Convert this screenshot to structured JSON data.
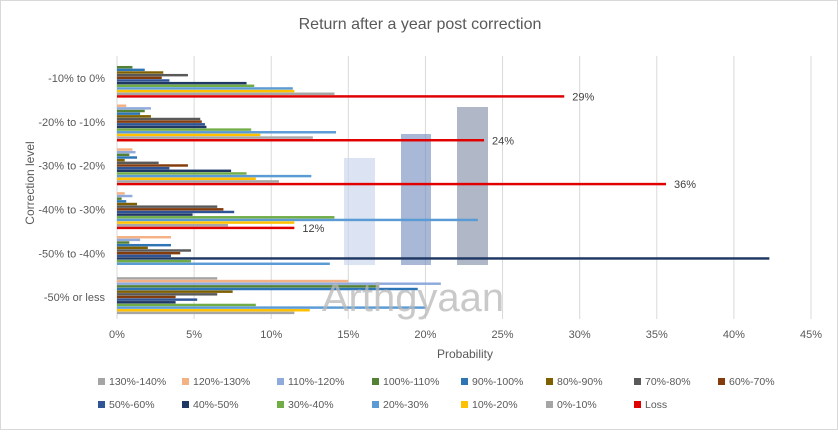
{
  "chart_data": {
    "type": "bar",
    "orientation": "horizontal",
    "title": "Return after a year post correction",
    "xlabel": "Probability",
    "ylabel": "Correction level",
    "xlim": [
      0,
      45
    ],
    "x_ticks": [
      "0%",
      "5%",
      "10%",
      "15%",
      "20%",
      "25%",
      "30%",
      "35%",
      "40%",
      "45%"
    ],
    "grid": true,
    "legend_position": "bottom",
    "categories": [
      "-10% to 0%",
      "-20% to -10%",
      "-30% to -20%",
      "-40% to -30%",
      "-50% to -40%",
      "-50% or less"
    ],
    "series": [
      {
        "name": "130%-140%",
        "color": "#a5a5a5",
        "values": [
          0,
          0,
          0,
          0,
          0,
          6.5
        ]
      },
      {
        "name": "120%-130%",
        "color": "#f4b183",
        "values": [
          0,
          0.6,
          1.0,
          0.5,
          3.5,
          15
        ]
      },
      {
        "name": "110%-120%",
        "color": "#8faadc",
        "values": [
          0,
          2.2,
          1.2,
          1.0,
          1.5,
          21
        ]
      },
      {
        "name": "100%-110%",
        "color": "#548235",
        "values": [
          1.0,
          1.8,
          0.8,
          0.3,
          0.8,
          17
        ]
      },
      {
        "name": "90%-100%",
        "color": "#2e75b6",
        "values": [
          1.8,
          1.5,
          1.3,
          0.6,
          3.5,
          19.5
        ]
      },
      {
        "name": "80%-90%",
        "color": "#7f6000",
        "values": [
          3.0,
          2.2,
          0.5,
          1.3,
          2.0,
          7.5
        ]
      },
      {
        "name": "70%-80%",
        "color": "#595959",
        "values": [
          4.6,
          5.4,
          2.7,
          6.5,
          4.8,
          6.5
        ]
      },
      {
        "name": "60%-70%",
        "color": "#843c0c",
        "values": [
          2.9,
          5.5,
          4.6,
          6.9,
          4.1,
          3.8
        ]
      },
      {
        "name": "50%-60%",
        "color": "#2f5597",
        "values": [
          3.4,
          5.7,
          3.4,
          7.6,
          3.5,
          5.2
        ]
      },
      {
        "name": "40%-50%",
        "color": "#203864",
        "values": [
          8.4,
          5.8,
          7.4,
          4.9,
          42.3,
          3.8
        ]
      },
      {
        "name": "30%-40%",
        "color": "#70ad47",
        "values": [
          8.9,
          8.7,
          8.4,
          14.1,
          4.8,
          9.0
        ]
      },
      {
        "name": "20%-30%",
        "color": "#5b9bd5",
        "values": [
          11.4,
          14.2,
          12.6,
          23.4,
          13.8,
          20.0
        ]
      },
      {
        "name": "10%-20%",
        "color": "#ffc000",
        "values": [
          11.5,
          9.3,
          9.0,
          11.5,
          0,
          12.5
        ]
      },
      {
        "name": "0%-10%",
        "color": "#a5a5a5",
        "values": [
          14.1,
          12.7,
          10.5,
          7.2,
          0,
          11.5
        ]
      },
      {
        "name": "Loss",
        "color": "#e00000",
        "values": [
          29.0,
          23.8,
          35.6,
          11.5,
          0,
          0
        ]
      }
    ],
    "annotations": [
      {
        "text": "29%",
        "category": "-10% to 0%",
        "series": "Loss"
      },
      {
        "text": "24%",
        "category": "-20% to -10%",
        "series": "Loss"
      },
      {
        "text": "36%",
        "category": "-30% to -20%",
        "series": "Loss"
      },
      {
        "text": "12%",
        "category": "-40% to -30%",
        "series": "Loss"
      }
    ],
    "watermark": "Arthgyaan"
  }
}
